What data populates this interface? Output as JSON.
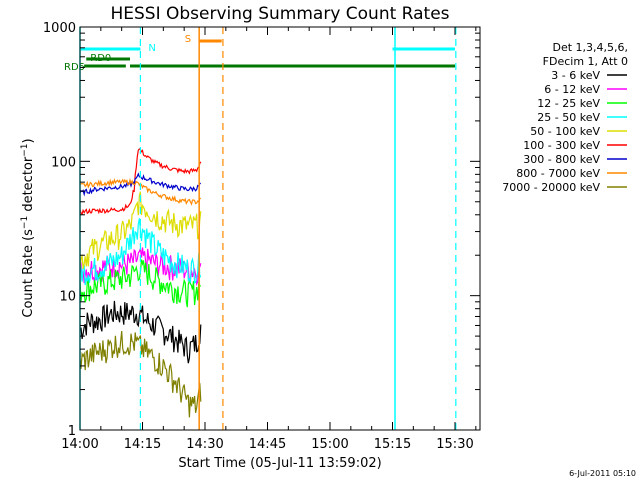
{
  "chart_data": {
    "type": "line",
    "title": "HESSI Observing Summary Count Rates",
    "xlabel": "Start Time (05-Jul-11 13:59:02)",
    "ylabel": "Count Rate (s⁻¹ detector⁻¹)",
    "ylabel_parts": {
      "main": "Count Rate (s",
      "sup1": "−1",
      "mid": " detector",
      "sup2": "−1",
      "end": ")"
    },
    "yscale": "log",
    "ylim": [
      1,
      1000
    ],
    "xlim": [
      0,
      96
    ],
    "x_unit": "minutes after 14:00 UT",
    "x_ticks": [
      {
        "value": 0,
        "label": "14:00"
      },
      {
        "value": 15,
        "label": "14:15"
      },
      {
        "value": 30,
        "label": "14:30"
      },
      {
        "value": 45,
        "label": "14:45"
      },
      {
        "value": 60,
        "label": "15:00"
      },
      {
        "value": 75,
        "label": "15:15"
      },
      {
        "value": 90,
        "label": "15:30"
      }
    ],
    "y_ticks": [
      {
        "value": 1,
        "label": "1"
      },
      {
        "value": 10,
        "label": "10"
      },
      {
        "value": 100,
        "label": "100"
      },
      {
        "value": 1000,
        "label": "1000"
      }
    ],
    "legend": {
      "position": "right",
      "header": [
        "Det 1,3,4,5,6,",
        "FDecim 1, Att 0"
      ]
    },
    "x": [
      0,
      2,
      4,
      6,
      8,
      10,
      12,
      13,
      14,
      16,
      18,
      20,
      22,
      24,
      26,
      28,
      29
    ],
    "series": [
      {
        "name": "3 - 6 keV",
        "color": "#000000",
        "values": [
          5.5,
          6.5,
          6.5,
          7,
          7.5,
          7.5,
          7.5,
          7.5,
          7.5,
          6.5,
          6,
          5.5,
          5,
          4.5,
          4,
          4.5,
          6
        ]
      },
      {
        "name": "6 - 12 keV",
        "color": "#ff00ff",
        "values": [
          15,
          16,
          16,
          16.5,
          17,
          17,
          17.5,
          18,
          19,
          18.5,
          17.5,
          17,
          16.5,
          16,
          15.5,
          15.5,
          17
        ]
      },
      {
        "name": "12 - 25 keV",
        "color": "#00ff00",
        "values": [
          11,
          11.5,
          12,
          12.5,
          13,
          13.5,
          14,
          15,
          16,
          15,
          13.5,
          12.5,
          11.5,
          11,
          10.5,
          11,
          13
        ]
      },
      {
        "name": "25 - 50 keV",
        "color": "#00ffff",
        "values": [
          15,
          15.5,
          16,
          17,
          18,
          20,
          26,
          30,
          35,
          28,
          23,
          20,
          18,
          17,
          16,
          16,
          18
        ]
      },
      {
        "name": "50 - 100 keV",
        "color": "#dddd00",
        "values": [
          18,
          21,
          23,
          25,
          27,
          29,
          33,
          38,
          50,
          45,
          40,
          37,
          35,
          34,
          33,
          33.5,
          35
        ]
      },
      {
        "name": "100 - 300 keV",
        "color": "#ff0000",
        "values": [
          42,
          42.5,
          43,
          43,
          43.5,
          44,
          47,
          62,
          125,
          108,
          98,
          92,
          88,
          85,
          84,
          86,
          100
        ]
      },
      {
        "name": "300 - 800 keV",
        "color": "#0000cc",
        "values": [
          58,
          60,
          62,
          63,
          64,
          65,
          67,
          70,
          78,
          74,
          70,
          67,
          65,
          63,
          62,
          63,
          68
        ]
      },
      {
        "name": "800 - 7000 keV",
        "color": "#ff8800",
        "values": [
          66,
          67,
          68,
          69,
          70,
          70,
          70,
          70,
          68,
          62,
          58,
          55,
          53,
          51,
          50,
          50,
          52
        ]
      },
      {
        "name": "7000 - 20000 keV",
        "color": "#808000",
        "values": [
          3.2,
          3.5,
          3.8,
          4,
          4.3,
          4.5,
          4.5,
          4.5,
          4.3,
          3.8,
          3.4,
          3,
          2.5,
          2,
          1.6,
          1.5,
          2
        ]
      }
    ],
    "flags": [
      {
        "name": "N",
        "label": "N",
        "color": "#00ffff",
        "level": "top",
        "intervals": [
          [
            0,
            14.5
          ],
          [
            75,
            90
          ]
        ]
      },
      {
        "name": "S",
        "label": "S",
        "color": "#ff8800",
        "level": "upper",
        "intervals": [
          [
            28.6,
            34
          ]
        ]
      },
      {
        "name": "RD0",
        "label": "RD0",
        "color": "#007700",
        "level": "middle",
        "intervals": [
          [
            1.5,
            12
          ]
        ]
      },
      {
        "name": "RD5",
        "label": "RD5",
        "color": "#007700",
        "level": "lower",
        "intervals": [
          [
            1,
            11
          ],
          [
            12,
            90
          ]
        ]
      }
    ],
    "markers": [
      {
        "x": 0,
        "color": "#00ffff",
        "style": "solid"
      },
      {
        "x": 14.5,
        "color": "#00ffff",
        "style": "dashed"
      },
      {
        "x": 28.6,
        "color": "#ff8800",
        "style": "solid"
      },
      {
        "x": 34.3,
        "color": "#ff8800",
        "style": "dashed"
      },
      {
        "x": 75.6,
        "color": "#00ffff",
        "style": "solid"
      },
      {
        "x": 90.2,
        "color": "#00ffff",
        "style": "dashed"
      }
    ],
    "timestamp": "6-Jul-2011 05:10"
  }
}
